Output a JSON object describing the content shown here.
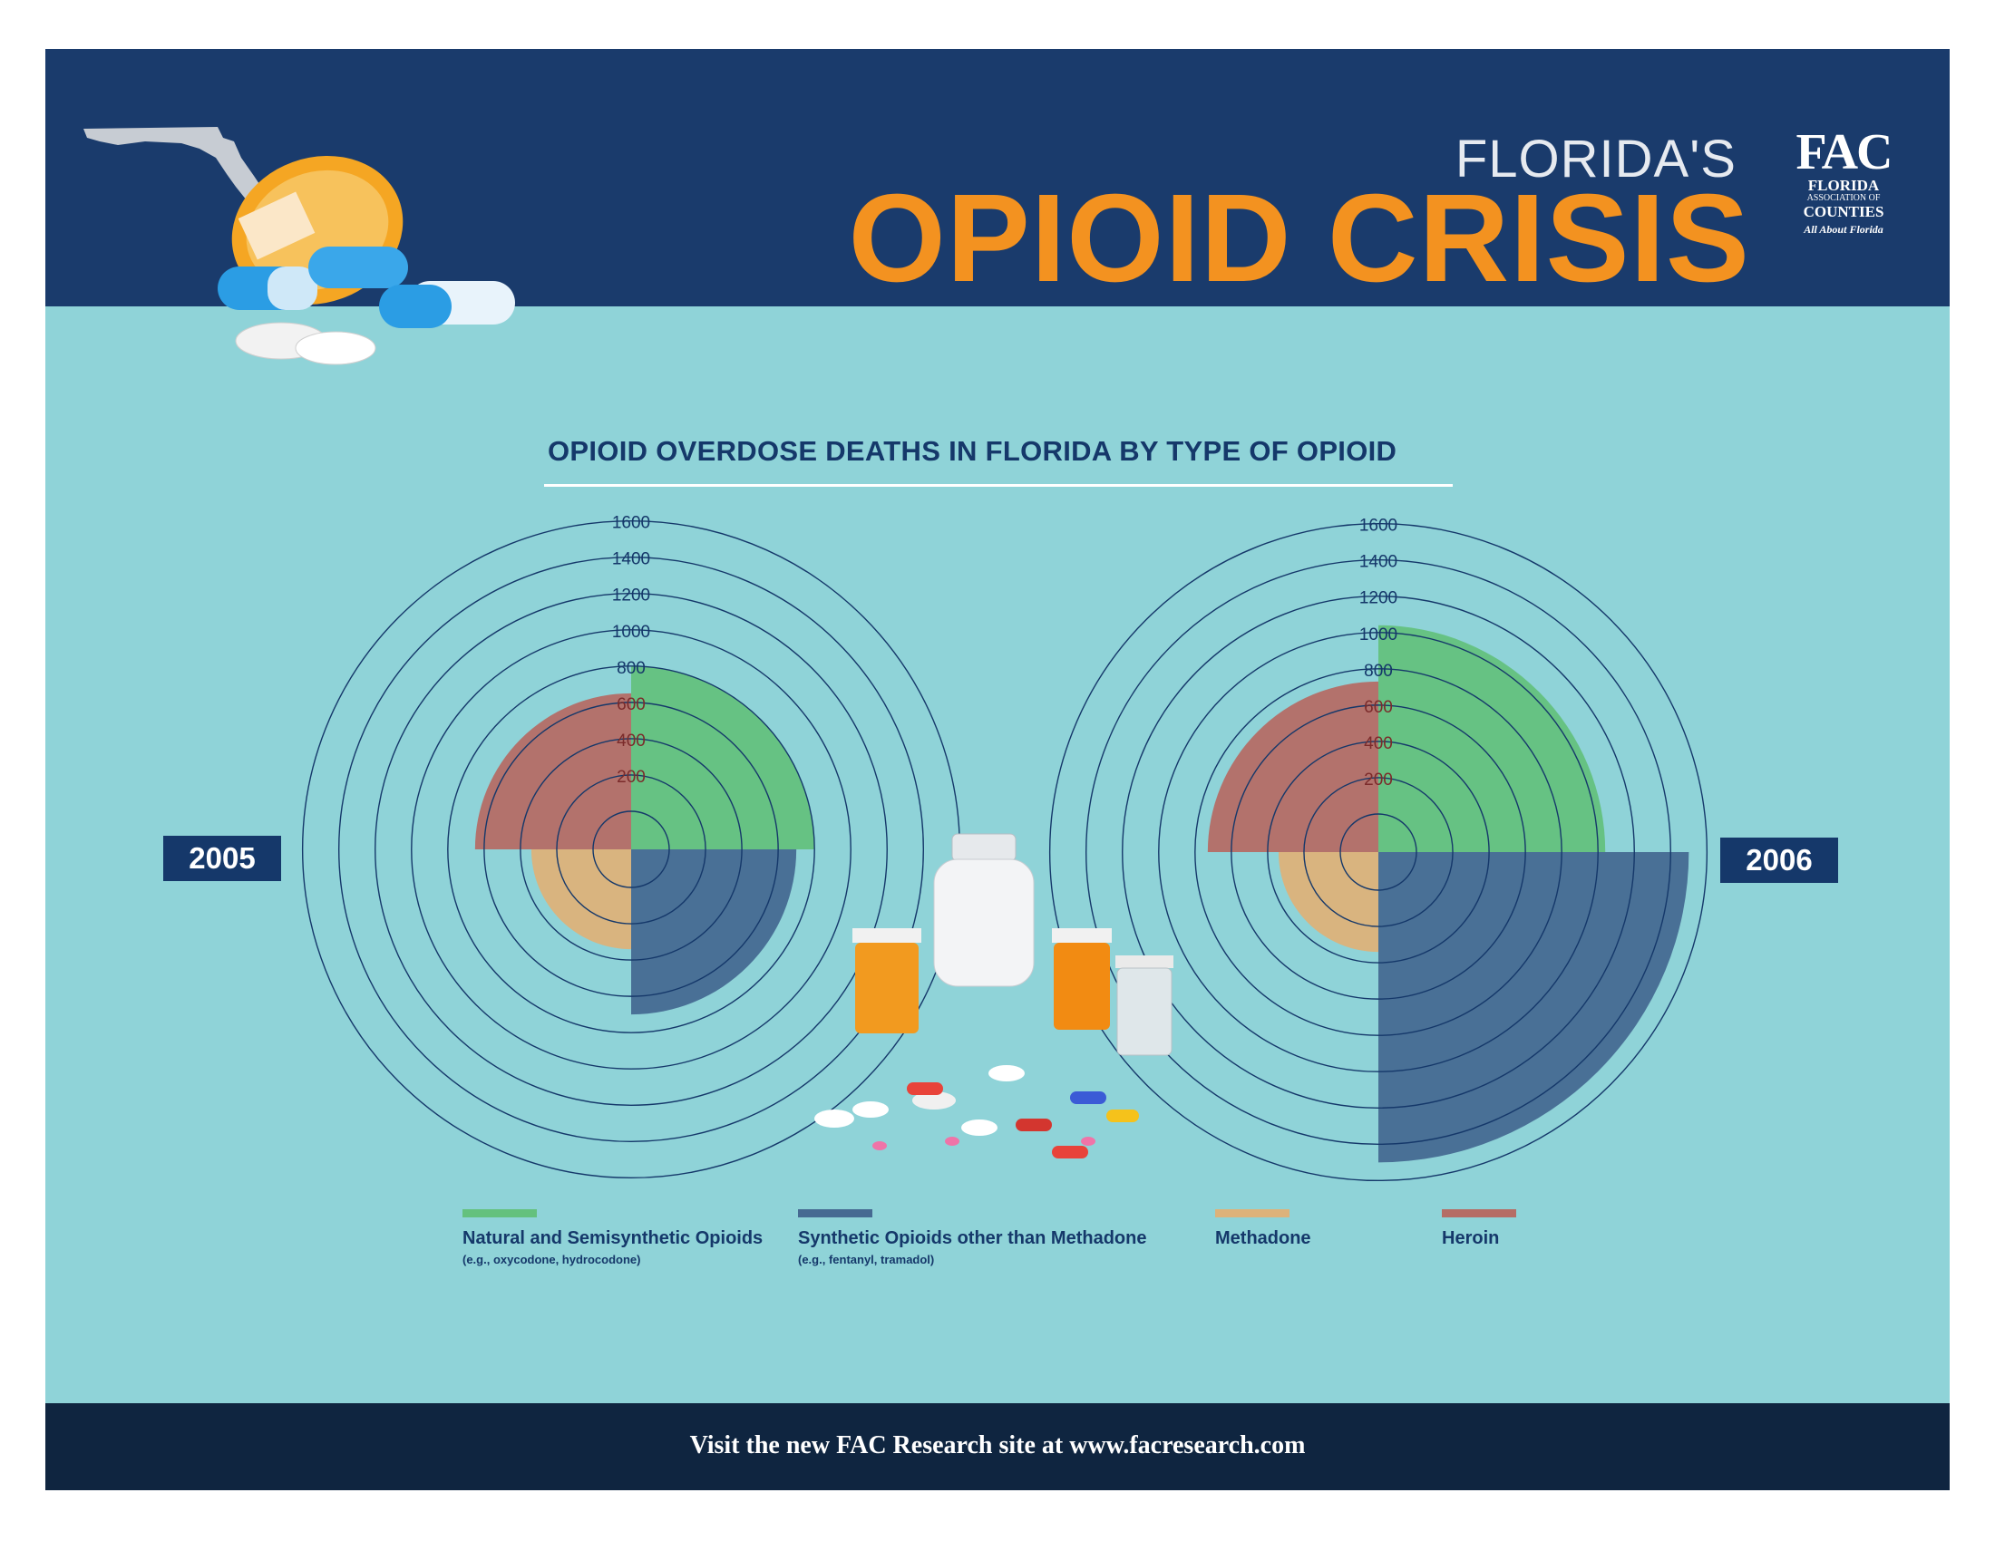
{
  "header": {
    "kicker": "FLORIDA'S",
    "title": "OPIOID CRISIS",
    "logo": {
      "mark": "FAC",
      "line1": "FLORIDA",
      "line2": "ASSOCIATION OF",
      "line3": "COUNTIES",
      "tagline": "All About Florida"
    }
  },
  "footer": {
    "prefix": "Visit the new FAC Research site at ",
    "url": "www.facresearch.com"
  },
  "colors": {
    "natural": "#64c17e",
    "synthetic": "#466a92",
    "methadone": "#ddb27a",
    "heroin": "#b56d66",
    "ring": "#15386a",
    "header": "#1a3b6c",
    "accent": "#f39220"
  },
  "chart_data": {
    "type": "polar-area",
    "title": "OPIOID OVERDOSE DEATHS IN FLORIDA BY TYPE OF OPIOID",
    "radial_ticks": [
      200,
      400,
      600,
      800,
      1000,
      1200,
      1400,
      1600
    ],
    "radial_max": 1600,
    "legend": [
      {
        "key": "natural",
        "name": "Natural and Semisynthetic Opioids",
        "sub": "(e.g., oxycodone, hydrocodone)"
      },
      {
        "key": "synthetic",
        "name": "Synthetic Opioids other than Methadone",
        "sub": "(e.g., fentanyl, tramadol)"
      },
      {
        "key": "methadone",
        "name": "Methadone",
        "sub": ""
      },
      {
        "key": "heroin",
        "name": "Heroin",
        "sub": ""
      }
    ],
    "charts": [
      {
        "year": "2005",
        "values": {
          "natural": 800,
          "synthetic": 700,
          "methadone": 340,
          "heroin": 650
        }
      },
      {
        "year": "2006",
        "values": {
          "natural": 1040,
          "synthetic": 1500,
          "methadone": 340,
          "heroin": 730
        }
      }
    ]
  }
}
